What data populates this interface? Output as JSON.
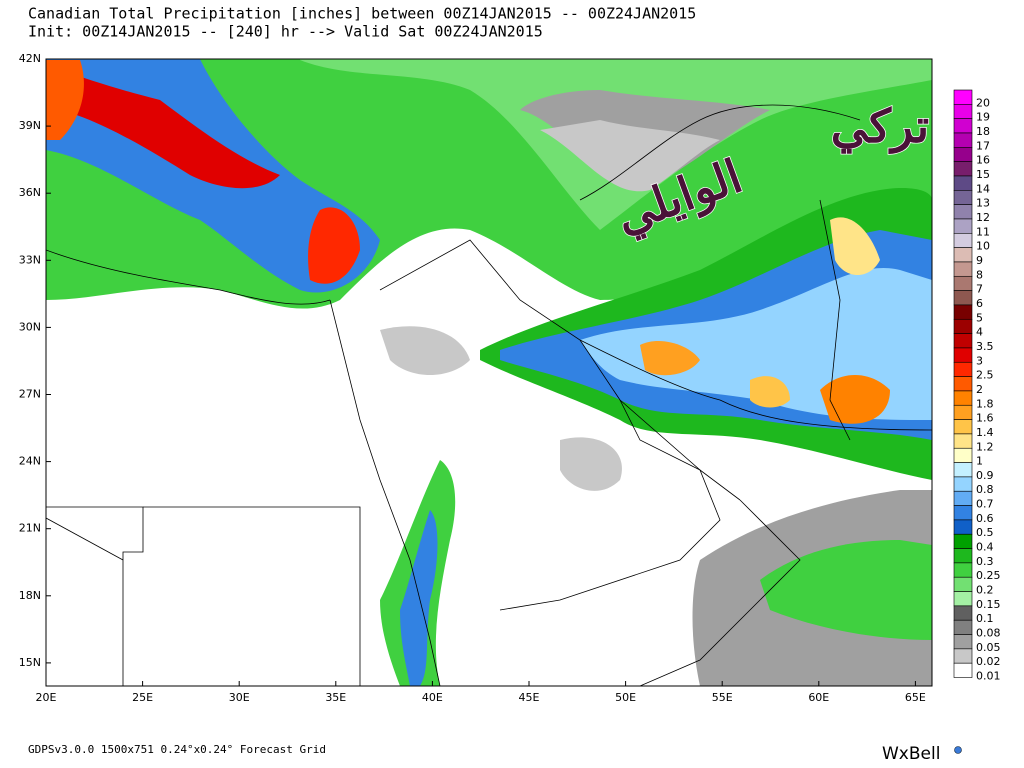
{
  "header": {
    "title": "Canadian Total Precipitation [inches] between 00Z14JAN2015 -- 00Z24JAN2015",
    "subtitle": "Init: 00Z14JAN2015 -- [240] hr --> Valid Sat 00Z24JAN2015"
  },
  "map": {
    "lat_labels": [
      "42N",
      "39N",
      "36N",
      "33N",
      "30N",
      "27N",
      "24N",
      "21N",
      "18N",
      "15N"
    ],
    "lon_labels": [
      "20E",
      "25E",
      "30E",
      "35E",
      "40E",
      "45E",
      "50E",
      "55E",
      "60E",
      "65E"
    ]
  },
  "watermark": {
    "line1": "تركي",
    "line2": "الوايلي"
  },
  "legend": {
    "levels": [
      {
        "label": "20",
        "color": "#ff00ff"
      },
      {
        "label": "19",
        "color": "#e800e8"
      },
      {
        "label": "18",
        "color": "#d000d0"
      },
      {
        "label": "17",
        "color": "#b400b0"
      },
      {
        "label": "16",
        "color": "#96008c"
      },
      {
        "label": "15",
        "color": "#781e6c"
      },
      {
        "label": "14",
        "color": "#5e4a86"
      },
      {
        "label": "13",
        "color": "#756596"
      },
      {
        "label": "12",
        "color": "#9082ac"
      },
      {
        "label": "11",
        "color": "#aca2c4"
      },
      {
        "label": "10",
        "color": "#d4cce0"
      },
      {
        "label": "9",
        "color": "#dcbcb4"
      },
      {
        "label": "8",
        "color": "#c49890"
      },
      {
        "label": "7",
        "color": "#aa7870"
      },
      {
        "label": "6",
        "color": "#8e5850"
      },
      {
        "label": "5",
        "color": "#780000"
      },
      {
        "label": "4",
        "color": "#9c0000"
      },
      {
        "label": "3.5",
        "color": "#c00000"
      },
      {
        "label": "3",
        "color": "#e00000"
      },
      {
        "label": "2.5",
        "color": "#ff2800"
      },
      {
        "label": "2",
        "color": "#ff5a00"
      },
      {
        "label": "1.8",
        "color": "#ff8200"
      },
      {
        "label": "1.6",
        "color": "#ffa020"
      },
      {
        "label": "1.4",
        "color": "#ffc448"
      },
      {
        "label": "1.2",
        "color": "#ffe488"
      },
      {
        "label": "1",
        "color": "#ffffc8"
      },
      {
        "label": "0.9",
        "color": "#c4f0ff"
      },
      {
        "label": "0.8",
        "color": "#94d4ff"
      },
      {
        "label": "0.7",
        "color": "#62acf4"
      },
      {
        "label": "0.6",
        "color": "#3282e2"
      },
      {
        "label": "0.5",
        "color": "#1060c8"
      },
      {
        "label": "0.4",
        "color": "#00a000"
      },
      {
        "label": "0.3",
        "color": "#1eb81e"
      },
      {
        "label": "0.25",
        "color": "#40d040"
      },
      {
        "label": "0.2",
        "color": "#72e072"
      },
      {
        "label": "0.15",
        "color": "#a4f0a4"
      },
      {
        "label": "0.1",
        "color": "#606060"
      },
      {
        "label": "0.08",
        "color": "#808080"
      },
      {
        "label": "0.05",
        "color": "#a0a0a0"
      },
      {
        "label": "0.02",
        "color": "#c8c8c8"
      },
      {
        "label": "0.01",
        "color": "#ffffff"
      }
    ]
  },
  "footer": {
    "grid_info": "GDPSv3.0.0 1500x751 0.24°x0.24° Forecast Grid",
    "logo": "WxBell"
  }
}
